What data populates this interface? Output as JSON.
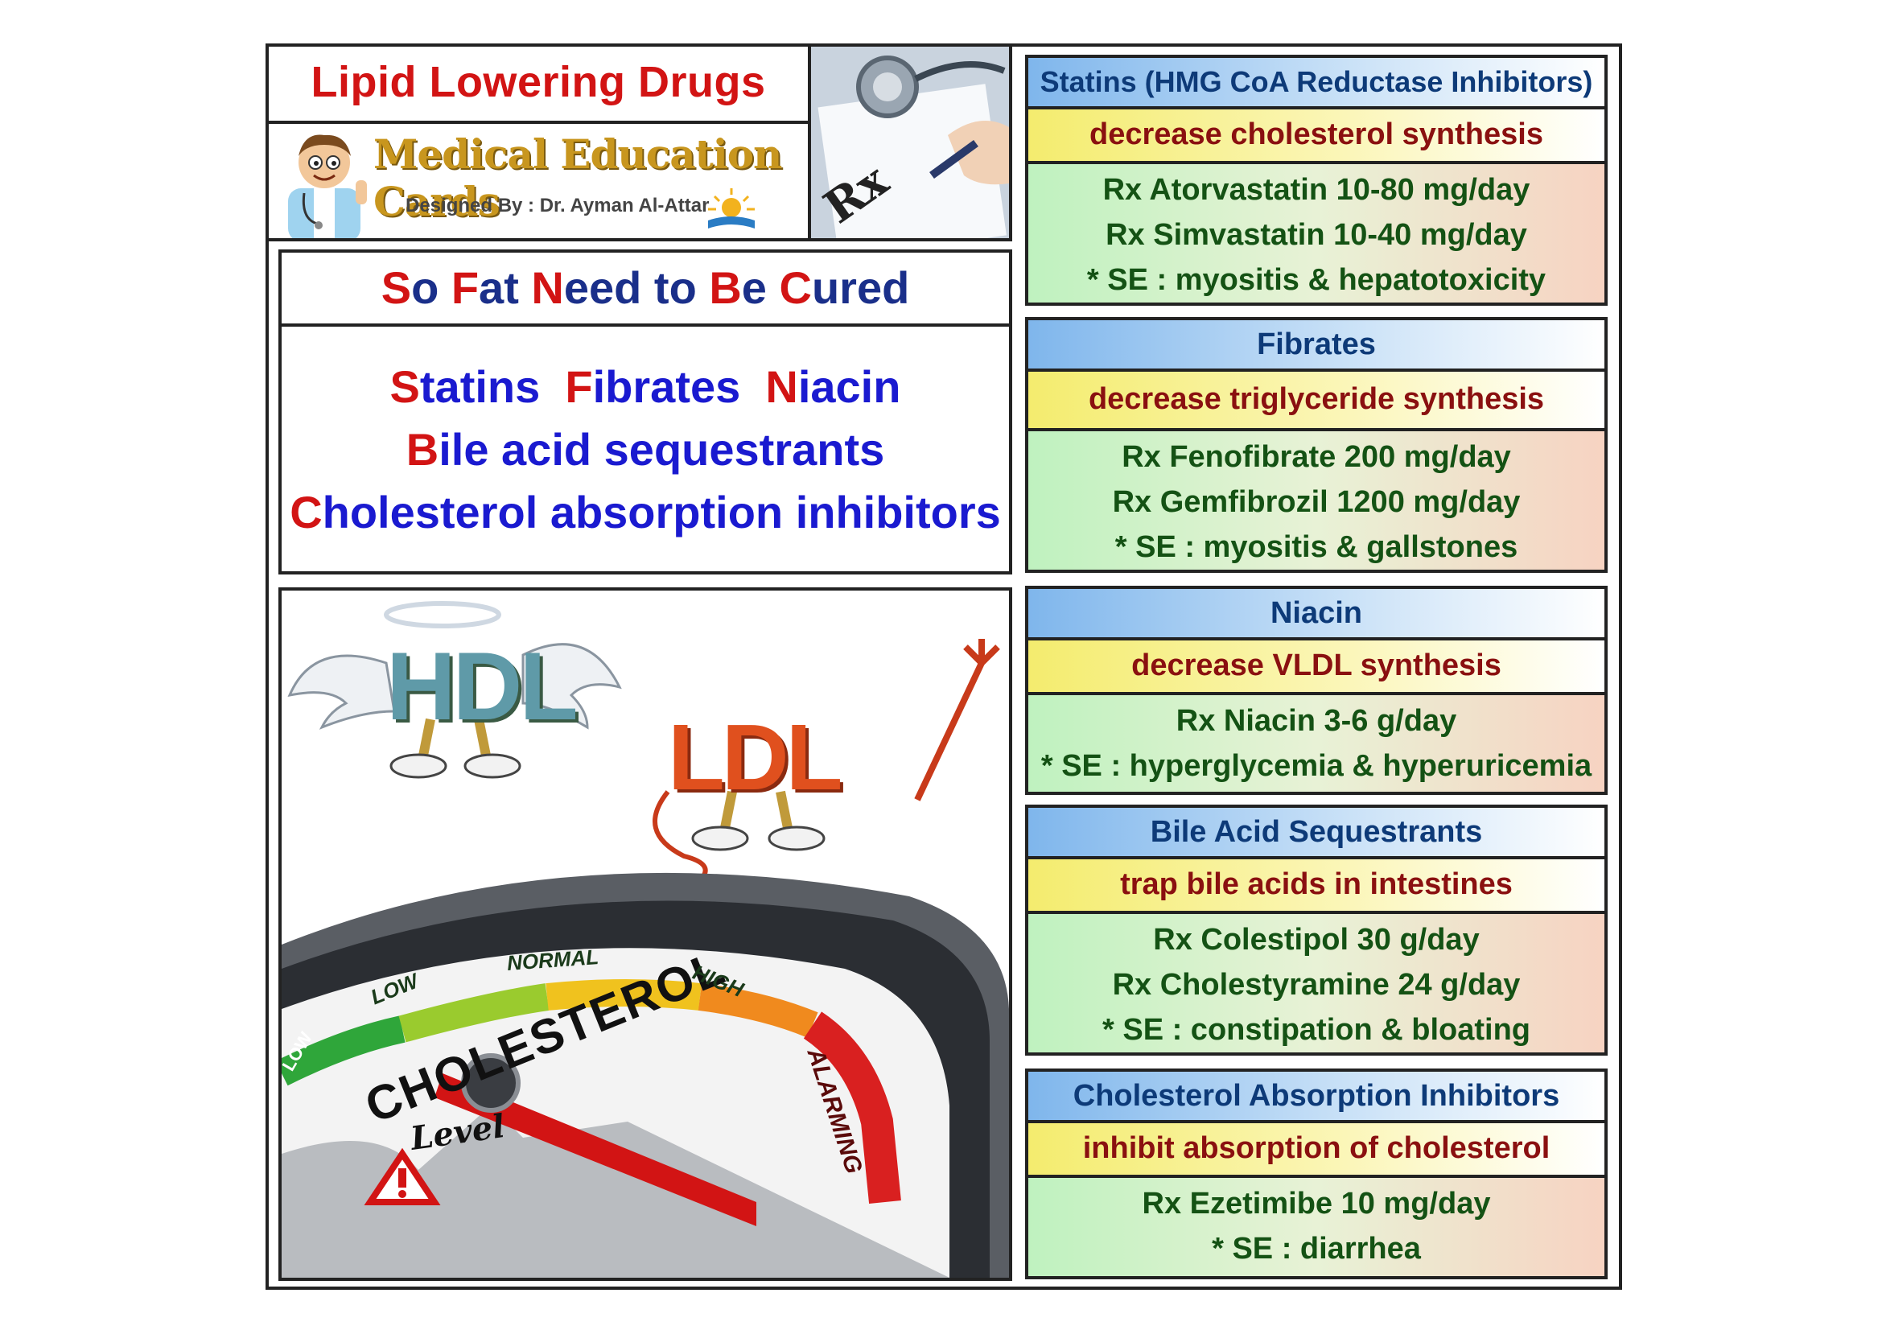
{
  "header": {
    "title": "Lipid Lowering Drugs",
    "brand": "Medical Education Cards",
    "designer": "Designed By : Dr. Ayman Al-Attar",
    "rx_symbol": "Rx"
  },
  "mnemonic": {
    "letters": [
      "S",
      "F",
      "N",
      "B",
      "C"
    ],
    "rests": [
      "o ",
      "at ",
      "eed to ",
      "e ",
      "ured"
    ]
  },
  "classes_list": {
    "line1": [
      {
        "initial": "S",
        "rest": "tatins"
      },
      {
        "initial": "F",
        "rest": "ibrates"
      },
      {
        "initial": "N",
        "rest": "iacin"
      }
    ],
    "line2": {
      "initial": "B",
      "rest": "ile acid sequestrants"
    },
    "line3": {
      "initial": "C",
      "rest": "holesterol absorption inhibitors"
    }
  },
  "illustration": {
    "hdl": "HDL",
    "ldl": "LDL",
    "gauge_title": "CHOLESTEROL",
    "gauge_sub": "Level",
    "zones": [
      "LOW",
      "LOW",
      "NORMAL",
      "HIGH",
      "ALARMING"
    ]
  },
  "drugs": [
    {
      "name": "Statins (HMG CoA Reductase Inhibitors)",
      "mechanism": "decrease cholesterol synthesis",
      "rx": [
        "Rx Atorvastatin 10-80 mg/day",
        "Rx Simvastatin 10-40 mg/day",
        "* SE : myositis & hepatotoxicity"
      ]
    },
    {
      "name": "Fibrates",
      "mechanism": "decrease triglyceride synthesis",
      "rx": [
        "Rx Fenofibrate 200 mg/day",
        "Rx Gemfibrozil 1200 mg/day",
        "* SE : myositis & gallstones"
      ]
    },
    {
      "name": "Niacin",
      "mechanism": "decrease VLDL synthesis",
      "rx": [
        "Rx Niacin 3-6 g/day",
        "* SE : hyperglycemia & hyperuricemia"
      ]
    },
    {
      "name": "Bile Acid Sequestrants",
      "mechanism": "trap bile acids in intestines",
      "rx": [
        "Rx Colestipol 30 g/day",
        "Rx Cholestyramine 24 g/day",
        "* SE : constipation & bloating"
      ]
    },
    {
      "name": "Cholesterol Absorption Inhibitors",
      "mechanism": "inhibit absorption of cholesterol",
      "rx": [
        "Rx Ezetimibe 10 mg/day",
        "* SE : diarrhea"
      ]
    }
  ]
}
